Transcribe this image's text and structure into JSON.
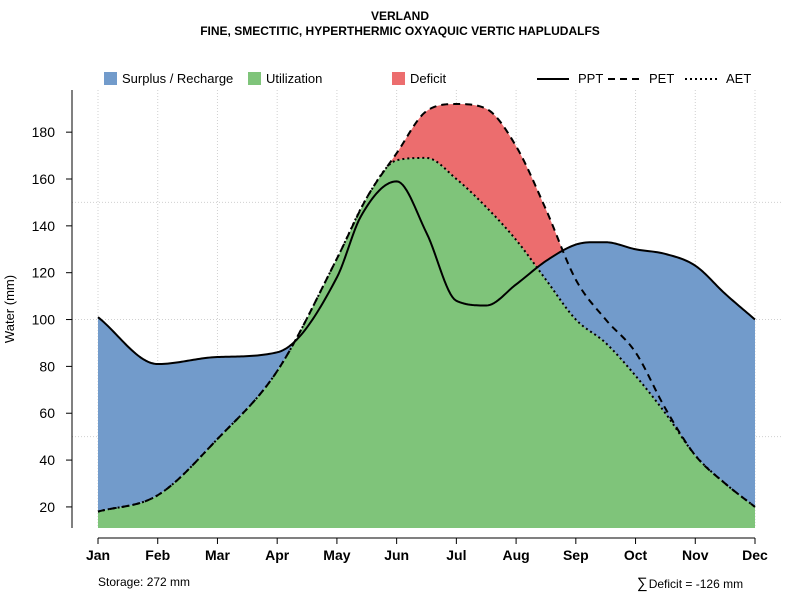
{
  "chart_data": {
    "type": "area",
    "title": "VERLAND",
    "subtitle": "FINE, SMECTITIC, HYPERTHERMIC OXYAQUIC VERTIC HAPLUDALFS",
    "xlabel": "",
    "ylabel": "Water (mm)",
    "categories": [
      "Jan",
      "Feb",
      "Mar",
      "Apr",
      "May",
      "Jun",
      "Jul",
      "Aug",
      "Sep",
      "Oct",
      "Nov",
      "Dec"
    ],
    "ylim": [
      11,
      198
    ],
    "yticks": [
      20,
      40,
      60,
      80,
      100,
      120,
      140,
      160,
      180
    ],
    "series": [
      {
        "name": "PPT",
        "style": "solid",
        "x": [
          1,
          2,
          3,
          4,
          5,
          5.4,
          6,
          6.5,
          7,
          7.5,
          8,
          8.5,
          9,
          9.3,
          9.5,
          10,
          10.5,
          11,
          11.5,
          12
        ],
        "values": [
          101,
          81,
          84,
          86,
          118,
          144,
          159,
          137,
          108,
          106,
          115,
          125,
          132,
          133,
          133,
          130,
          128,
          123,
          111,
          100
        ]
      },
      {
        "name": "PET",
        "style": "dashed",
        "x": [
          1,
          2,
          3,
          4,
          5,
          5.5,
          6,
          6.5,
          7,
          7.5,
          8,
          8.5,
          9,
          9.5,
          10,
          10.5,
          11,
          11.5,
          12
        ],
        "values": [
          18,
          25,
          49,
          78,
          126,
          152,
          171,
          189,
          192,
          190,
          174,
          147,
          117,
          100,
          86,
          62,
          42,
          30,
          20
        ]
      },
      {
        "name": "AET",
        "style": "dotted",
        "x": [
          1,
          2,
          3,
          4,
          5,
          5.5,
          6,
          6.5,
          7,
          7.5,
          8,
          8.5,
          9,
          9.5,
          10,
          10.5,
          11,
          11.5,
          12
        ],
        "values": [
          18,
          25,
          49,
          78,
          126,
          152,
          168,
          169,
          160,
          148,
          134,
          117,
          100,
          90,
          76,
          60,
          42,
          30,
          20
        ]
      }
    ],
    "areas": [
      "Surplus / Recharge",
      "Utilization",
      "Deficit"
    ],
    "grid": true,
    "legend_position": "top"
  },
  "colors": {
    "surplus": "#729bcb",
    "utilization": "#7fc47a",
    "deficit": "#ec6d6e",
    "line": "#000000",
    "grid": "#d0d0d0"
  },
  "header": {
    "title": "VERLAND",
    "subtitle": "FINE, SMECTITIC, HYPERTHERMIC OXYAQUIC VERTIC HAPLUDALFS"
  },
  "legend": {
    "surplus": "Surplus / Recharge",
    "utilization": "Utilization",
    "deficit": "Deficit",
    "ppt": "PPT",
    "pet": "PET",
    "aet": "AET"
  },
  "footer": {
    "storage": "Storage: 272 mm",
    "deficit_symbol": "∑",
    "deficit": "Deficit = -126 mm"
  }
}
